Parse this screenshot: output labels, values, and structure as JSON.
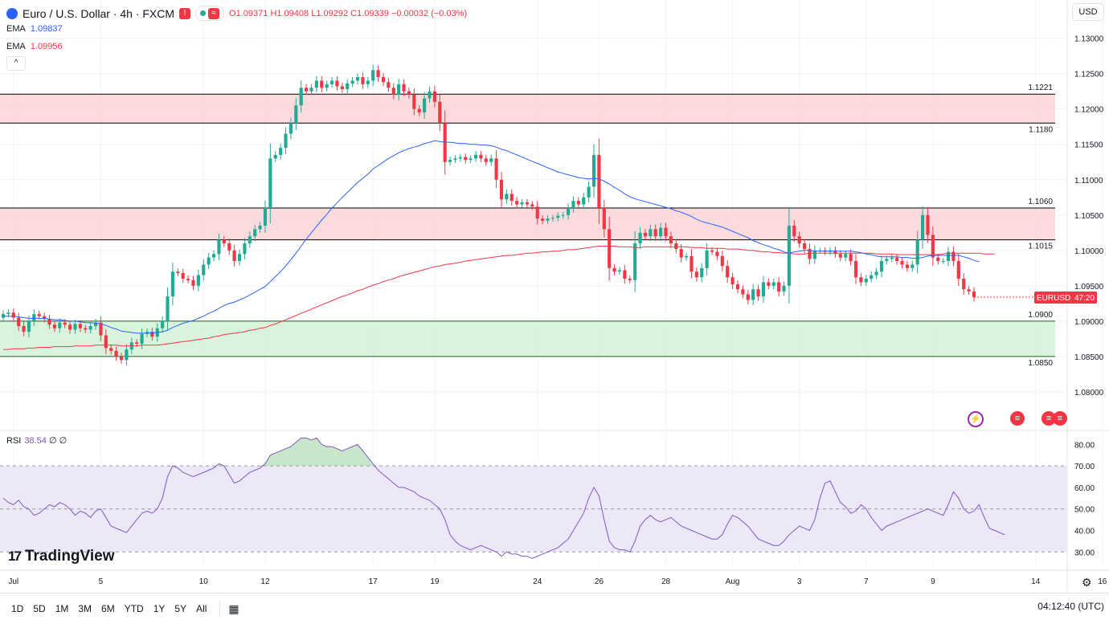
{
  "header": {
    "symbol": "Euro / U.S. Dollar · 4h · FXCM",
    "open": "O1.09371",
    "high": "H1.09408",
    "low": "L1.09292",
    "close": "C1.09339",
    "change": "−0.00032 (−0.03%)",
    "flag_label": "≈"
  },
  "indicators": {
    "ema1": {
      "name": "EMA",
      "value": "1.09837",
      "color": "#2962ff"
    },
    "ema2": {
      "name": "EMA",
      "value": "1.09956",
      "color": "#f23645"
    },
    "collapse_label": "^"
  },
  "rsi": {
    "name": "RSI",
    "value": "38.54",
    "params": "∅ ∅"
  },
  "currency_button": "USD",
  "brand": "TradingView",
  "price_tag": {
    "symbol": "EURUSD",
    "countdown": "47:20",
    "value": 1.09339
  },
  "toolbar": {
    "ranges": [
      "1D",
      "5D",
      "1M",
      "3M",
      "6M",
      "YTD",
      "1Y",
      "5Y",
      "All"
    ],
    "clock": "04:12:40 (UTC)"
  },
  "colors": {
    "up": "#22ab94",
    "down": "#f23645",
    "resistance_zone": "#fcd5d8",
    "support_zone": "#d3f1d6",
    "rsi_line": "#7e57c2",
    "rsi_band": "#ede8f8"
  },
  "chart_data": [
    {
      "type": "candlestick",
      "title": "Euro / U.S. Dollar · 4h · FXCM",
      "x_ticks": [
        "Jul",
        "5",
        "10",
        "12",
        "17",
        "19",
        "24",
        "26",
        "28",
        "Aug",
        "3",
        "7",
        "9",
        "14",
        "16"
      ],
      "ylim": [
        1.075,
        1.132
      ],
      "y_ticks": [
        1.08,
        1.085,
        1.09,
        1.095,
        1.1,
        1.105,
        1.11,
        1.115,
        1.12,
        1.125,
        1.13
      ],
      "zones": [
        {
          "label_top": "1.1221",
          "label_bottom": "1.1180",
          "top": 1.1221,
          "bottom": 1.118,
          "kind": "resistance"
        },
        {
          "label_top": "1.1060",
          "label_bottom": "1.1015",
          "top": 1.106,
          "bottom": 1.1015,
          "kind": "resistance"
        },
        {
          "label_top": "1.0900",
          "label_bottom": "1.0850",
          "top": 1.09,
          "bottom": 1.085,
          "kind": "support"
        }
      ],
      "close": [
        1.091,
        1.0912,
        1.0905,
        1.0893,
        1.0885,
        1.09,
        1.091,
        1.0907,
        1.0903,
        1.0895,
        1.089,
        1.0898,
        1.0895,
        1.0888,
        1.0896,
        1.089,
        1.0888,
        1.0893,
        1.0898,
        1.088,
        1.0862,
        1.0858,
        1.085,
        1.0845,
        1.086,
        1.087,
        1.0868,
        1.0882,
        1.0885,
        1.0878,
        1.089,
        1.09,
        1.0935,
        1.097,
        1.0968,
        1.096,
        1.0958,
        1.095,
        1.0965,
        1.098,
        1.099,
        1.0995,
        1.1015,
        1.101,
        1.1,
        1.0985,
        1.0995,
        1.101,
        1.102,
        1.103,
        1.1035,
        1.106,
        1.113,
        1.1135,
        1.1145,
        1.1165,
        1.118,
        1.1205,
        1.123,
        1.1225,
        1.123,
        1.124,
        1.123,
        1.1235,
        1.124,
        1.1232,
        1.1228,
        1.1236,
        1.124,
        1.1245,
        1.1235,
        1.124,
        1.1255,
        1.1245,
        1.1238,
        1.123,
        1.122,
        1.1235,
        1.1225,
        1.122,
        1.12,
        1.1195,
        1.1215,
        1.1225,
        1.121,
        1.118,
        1.1125,
        1.1128,
        1.113,
        1.1132,
        1.1128,
        1.113,
        1.1135,
        1.113,
        1.1125,
        1.113,
        1.11,
        1.1072,
        1.108,
        1.107,
        1.1065,
        1.1068,
        1.1065,
        1.1062,
        1.1045,
        1.1042,
        1.1045,
        1.1046,
        1.1049,
        1.105,
        1.106,
        1.107,
        1.1065,
        1.1075,
        1.109,
        1.1135,
        1.106,
        1.103,
        1.0975,
        1.097,
        1.0972,
        1.096,
        1.0958,
        1.101,
        1.1025,
        1.102,
        1.103,
        1.102,
        1.1032,
        1.102,
        1.101,
        1.1002,
        1.099,
        1.0992,
        1.097,
        1.0962,
        1.0975,
        1.1,
        1.0998,
        1.0992,
        1.0978,
        1.0962,
        1.0952,
        1.0945,
        1.0938,
        1.093,
        1.0945,
        1.0935,
        1.0955,
        1.095,
        1.0955,
        1.0942,
        1.095,
        1.1035,
        1.102,
        1.101,
        1.1002,
        1.0988,
        1.1,
        1.1,
        1.0998,
        1.1,
        1.0995,
        1.099,
        1.0995,
        1.0985,
        1.0962,
        1.0955,
        1.096,
        1.0965,
        1.097,
        1.0985,
        1.0988,
        1.099,
        1.0985,
        1.098,
        1.0975,
        1.098,
        1.1015,
        1.105,
        1.1022,
        1.099,
        1.0985,
        1.0985,
        1.0998,
        1.0985,
        1.096,
        1.0945,
        1.0942,
        1.0934
      ]
    },
    {
      "type": "line",
      "series": [
        {
          "name": "EMA",
          "color": "#2962ff",
          "values": [
            1.0907,
            1.0907,
            1.0907,
            1.0906,
            1.0905,
            1.0904,
            1.0904,
            1.0904,
            1.0904,
            1.0903,
            1.0902,
            1.0902,
            1.0901,
            1.09,
            1.09,
            1.0899,
            1.0898,
            1.0898,
            1.0897,
            1.0896,
            1.0894,
            1.0891,
            1.0889,
            1.0886,
            1.0885,
            1.0884,
            1.0883,
            1.0883,
            1.0883,
            1.0883,
            1.0884,
            1.0885,
            1.0887,
            1.0891,
            1.0894,
            1.0897,
            1.0899,
            1.0901,
            1.0904,
            1.0907,
            1.0911,
            1.0914,
            1.0918,
            1.0922,
            1.0925,
            1.0927,
            1.093,
            1.0933,
            1.0937,
            1.0941,
            1.0945,
            1.0949,
            1.0956,
            1.0963,
            1.097,
            1.0978,
            1.0987,
            1.0996,
            1.1006,
            1.1016,
            1.1025,
            1.1034,
            1.1043,
            1.1051,
            1.106,
            1.1067,
            1.1075,
            1.1082,
            1.1089,
            1.1096,
            1.1102,
            1.1108,
            1.1115,
            1.112,
            1.1125,
            1.113,
            1.1134,
            1.1138,
            1.1141,
            1.1144,
            1.1146,
            1.1148,
            1.1151,
            1.1153,
            1.1155,
            1.1154,
            1.1153,
            1.1153,
            1.1152,
            1.1151,
            1.1151,
            1.115,
            1.115,
            1.1149,
            1.1149,
            1.1148,
            1.1146,
            1.1143,
            1.1141,
            1.1138,
            1.1135,
            1.1132,
            1.1129,
            1.1126,
            1.1123,
            1.112,
            1.1117,
            1.1114,
            1.1111,
            1.1109,
            1.1107,
            1.1105,
            1.1103,
            1.1102,
            1.1101,
            1.1102,
            1.1101,
            1.1098,
            1.1094,
            1.1089,
            1.1085,
            1.108,
            1.1076,
            1.1073,
            1.1071,
            1.1069,
            1.1067,
            1.1065,
            1.1063,
            1.1061,
            1.1059,
            1.1056,
            1.1054,
            1.1051,
            1.1048,
            1.1044,
            1.1041,
            1.1039,
            1.1037,
            1.1035,
            1.1033,
            1.103,
            1.1027,
            1.1024,
            1.1021,
            1.1018,
            1.1014,
            1.1011,
            1.1008,
            1.1006,
            1.1003,
            1.1001,
            1.0998,
            1.0996,
            1.0998,
            1.0999,
            1.1,
            1.1,
            1.0999,
            1.0999,
            1.0999,
            1.0999,
            1.0999,
            1.0999,
            1.0999,
            1.0999,
            1.0998,
            1.0997,
            1.0995,
            1.0994,
            1.0992,
            1.0991,
            1.0991,
            1.0991,
            1.0991,
            1.099,
            1.099,
            1.0989,
            1.0989,
            1.099,
            1.0992,
            1.0993,
            1.0993,
            1.0993,
            1.0993,
            1.0993,
            1.0993,
            1.0991,
            1.0989,
            1.0986,
            1.0984
          ]
        },
        {
          "name": "EMA",
          "color": "#f23645",
          "values": [
            1.086,
            1.086,
            1.0861,
            1.0861,
            1.0861,
            1.0862,
            1.0862,
            1.0863,
            1.0863,
            1.0863,
            1.0864,
            1.0864,
            1.0864,
            1.0864,
            1.0865,
            1.0865,
            1.0865,
            1.0865,
            1.0866,
            1.0866,
            1.0866,
            1.0866,
            1.0866,
            1.0865,
            1.0865,
            1.0865,
            1.0865,
            1.0866,
            1.0866,
            1.0866,
            1.0866,
            1.0867,
            1.0868,
            1.0869,
            1.087,
            1.0871,
            1.0872,
            1.0873,
            1.0874,
            1.0875,
            1.0876,
            1.0878,
            1.0879,
            1.0881,
            1.0882,
            1.0883,
            1.0884,
            1.0885,
            1.0887,
            1.0888,
            1.089,
            1.0891,
            1.0894,
            1.0896,
            1.0899,
            1.0902,
            1.0905,
            1.0908,
            1.0911,
            1.0914,
            1.0917,
            1.092,
            1.0923,
            1.0926,
            1.0929,
            1.0932,
            1.0935,
            1.0937,
            1.094,
            1.0943,
            1.0945,
            1.0948,
            1.0951,
            1.0953,
            1.0956,
            1.0958,
            1.096,
            1.0963,
            1.0965,
            1.0967,
            1.0969,
            1.0971,
            1.0973,
            1.0975,
            1.0977,
            1.0978,
            1.098,
            1.0981,
            1.0982,
            1.0983,
            1.0985,
            1.0986,
            1.0987,
            1.0988,
            1.0989,
            1.099,
            1.0991,
            1.0992,
            1.0993,
            1.0993,
            1.0994,
            1.0995,
            1.0996,
            1.0996,
            1.0997,
            1.0998,
            1.0998,
            1.0999,
            1.0999,
            1.1,
            1.1001,
            1.1001,
            1.1002,
            1.1003,
            1.1004,
            1.1005,
            1.1006,
            1.1006,
            1.1006,
            1.1006,
            1.1005,
            1.1005,
            1.1005,
            1.1004,
            1.1004,
            1.1005,
            1.1005,
            1.1005,
            1.1005,
            1.1005,
            1.1005,
            1.1005,
            1.1005,
            1.1005,
            1.1004,
            1.1004,
            1.1004,
            1.1003,
            1.1003,
            1.1003,
            1.1003,
            1.1002,
            1.1002,
            1.1002,
            1.1001,
            1.1,
            1.1,
            1.0999,
            1.0998,
            1.0998,
            1.0997,
            1.0997,
            1.0996,
            1.0996,
            1.0995,
            1.0995,
            1.0995,
            1.0996,
            1.0996,
            1.0996,
            1.0996,
            1.0996,
            1.0996,
            1.0996,
            1.0996,
            1.0996,
            1.0996,
            1.0996,
            1.0996,
            1.0996,
            1.0995,
            1.0995,
            1.0995,
            1.0995,
            1.0994,
            1.0994,
            1.0994,
            1.0994,
            1.0994,
            1.0994,
            1.0994,
            1.0994,
            1.0994,
            1.0995,
            1.0996,
            1.0996,
            1.0996,
            1.0996,
            1.0996,
            1.0996,
            1.0996,
            1.0995,
            1.0995,
            1.0995
          ]
        }
      ]
    },
    {
      "type": "line",
      "title": "RSI",
      "ylim": [
        23,
        85
      ],
      "y_ticks": [
        30.0,
        40.0,
        50.0,
        60.0,
        70.0,
        80.0
      ],
      "band": [
        30,
        70
      ],
      "midline": 50,
      "series": [
        {
          "name": "RSI",
          "color": "#7e57c2",
          "values": [
            55,
            53,
            52,
            54,
            51,
            50,
            47,
            48,
            50,
            52,
            51,
            53,
            52,
            50,
            47,
            49,
            48,
            46,
            49,
            50,
            46,
            42,
            41,
            40,
            39,
            42,
            45,
            48,
            49,
            48,
            50,
            55,
            65,
            70,
            69,
            67,
            66,
            65,
            66,
            67,
            68,
            69,
            71,
            70,
            66,
            62,
            63,
            65,
            67,
            68,
            69,
            71,
            75,
            76,
            77,
            78,
            79,
            81,
            83,
            83,
            82,
            83,
            80,
            79,
            79,
            78,
            77,
            78,
            79,
            80,
            77,
            74,
            71,
            68,
            66,
            64,
            62,
            60,
            60,
            59,
            58,
            56,
            55,
            54,
            52,
            50,
            45,
            38,
            35,
            33,
            32,
            31,
            32,
            33,
            32,
            31,
            30,
            28,
            30,
            29,
            29,
            28,
            28,
            27,
            28,
            29,
            30,
            31,
            32,
            34,
            36,
            40,
            44,
            48,
            55,
            60,
            56,
            45,
            35,
            32,
            31,
            31,
            30,
            35,
            42,
            45,
            47,
            45,
            44,
            45,
            46,
            44,
            42,
            41,
            40,
            39,
            38,
            37,
            36,
            36,
            38,
            43,
            47,
            46,
            44,
            42,
            39,
            36,
            35,
            34,
            33,
            33,
            35,
            38,
            40,
            42,
            41,
            40,
            45,
            55,
            62,
            63,
            58,
            53,
            51,
            48,
            49,
            52,
            50,
            46,
            43,
            40,
            42,
            43,
            44,
            45,
            46,
            47,
            48,
            49,
            50,
            49,
            48,
            47,
            52,
            58,
            55,
            50,
            48,
            49,
            52,
            46,
            41,
            40,
            39,
            38
          ]
        }
      ]
    }
  ]
}
